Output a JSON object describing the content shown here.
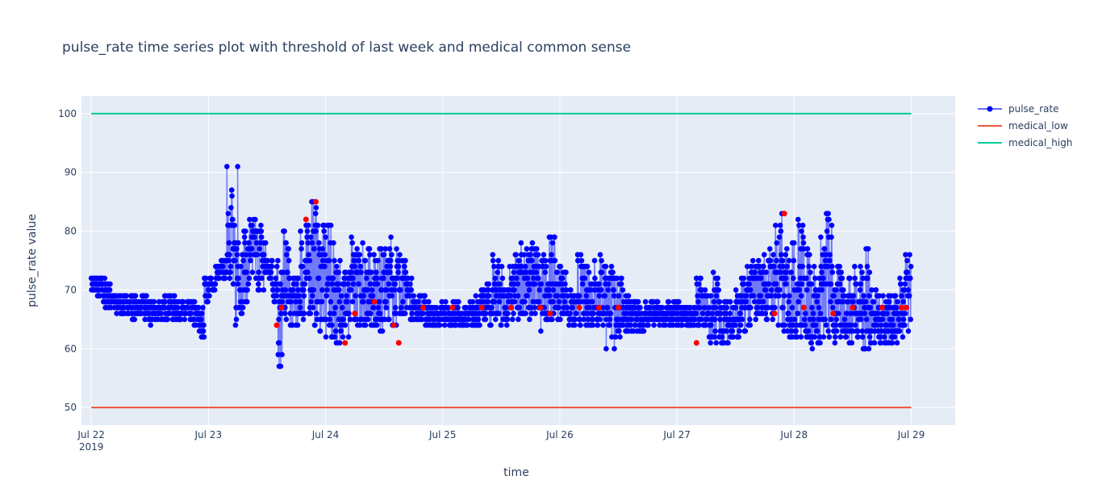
{
  "chart_data": {
    "type": "line",
    "title": "pulse_rate time series plot with threshold of last week and medical common sense",
    "xlabel": "time",
    "ylabel": "pulse_rate value",
    "x_range": [
      "2019-07-21T22:00",
      "2019-07-29T09:00"
    ],
    "ylim": [
      47,
      103
    ],
    "x_ticks": [
      {
        "x": "2019-07-22",
        "label": "Jul 22",
        "sublabel": "2019"
      },
      {
        "x": "2019-07-23",
        "label": "Jul 23",
        "sublabel": ""
      },
      {
        "x": "2019-07-24",
        "label": "Jul 24",
        "sublabel": ""
      },
      {
        "x": "2019-07-25",
        "label": "Jul 25",
        "sublabel": ""
      },
      {
        "x": "2019-07-26",
        "label": "Jul 26",
        "sublabel": ""
      },
      {
        "x": "2019-07-27",
        "label": "Jul 27",
        "sublabel": ""
      },
      {
        "x": "2019-07-28",
        "label": "Jul 28",
        "sublabel": ""
      },
      {
        "x": "2019-07-29",
        "label": "Jul 29",
        "sublabel": ""
      }
    ],
    "y_ticks": [
      50,
      60,
      70,
      80,
      90,
      100
    ],
    "grid": true,
    "legend_position": "top-right",
    "series": [
      {
        "name": "pulse_rate",
        "mode": "lines+markers",
        "line_color": "#636efa",
        "marker_color": "#0000ff",
        "x_start": "2019-07-22T00:00",
        "x_end": "2019-07-29T00:00",
        "envelope": [
          [
            70,
            72
          ],
          [
            69,
            72
          ],
          [
            67,
            72
          ],
          [
            67,
            71
          ],
          [
            66,
            69
          ],
          [
            66,
            69
          ],
          [
            66,
            69
          ],
          [
            65,
            69
          ],
          [
            66,
            68
          ],
          [
            65,
            69
          ],
          [
            64,
            68
          ],
          [
            65,
            68
          ],
          [
            65,
            68
          ],
          [
            65,
            69
          ],
          [
            65,
            69
          ],
          [
            65,
            68
          ],
          [
            65,
            68
          ],
          [
            65,
            68
          ],
          [
            64,
            68
          ],
          [
            62,
            67
          ],
          [
            68,
            72
          ],
          [
            70,
            72
          ],
          [
            72,
            74
          ],
          [
            72,
            75
          ],
          [
            72,
            91
          ],
          [
            64,
            82
          ],
          [
            66,
            78
          ],
          [
            68,
            80
          ],
          [
            73,
            82
          ],
          [
            70,
            82
          ],
          [
            70,
            81
          ],
          [
            72,
            75
          ],
          [
            68,
            75
          ],
          [
            57,
            75
          ],
          [
            65,
            80
          ],
          [
            64,
            72
          ],
          [
            64,
            72
          ],
          [
            65,
            80
          ],
          [
            66,
            81
          ],
          [
            64,
            85
          ],
          [
            63,
            81
          ],
          [
            62,
            81
          ],
          [
            62,
            81
          ],
          [
            61,
            75
          ],
          [
            62,
            75
          ],
          [
            62,
            73
          ],
          [
            65,
            79
          ],
          [
            64,
            77
          ],
          [
            64,
            78
          ],
          [
            64,
            77
          ],
          [
            64,
            76
          ],
          [
            63,
            77
          ],
          [
            65,
            77
          ],
          [
            64,
            79
          ],
          [
            66,
            77
          ],
          [
            66,
            75
          ],
          [
            65,
            72
          ],
          [
            65,
            69
          ],
          [
            65,
            69
          ],
          [
            64,
            69
          ],
          [
            64,
            67
          ],
          [
            64,
            67
          ],
          [
            64,
            68
          ],
          [
            64,
            67
          ],
          [
            64,
            68
          ],
          [
            64,
            66
          ],
          [
            64,
            67
          ],
          [
            64,
            68
          ],
          [
            64,
            69
          ],
          [
            65,
            70
          ],
          [
            64,
            71
          ],
          [
            65,
            76
          ],
          [
            64,
            75
          ],
          [
            64,
            70
          ],
          [
            65,
            74
          ],
          [
            65,
            76
          ],
          [
            66,
            78
          ],
          [
            65,
            77
          ],
          [
            66,
            78
          ],
          [
            63,
            76
          ],
          [
            65,
            76
          ],
          [
            65,
            79
          ],
          [
            65,
            75
          ],
          [
            66,
            74
          ],
          [
            64,
            70
          ],
          [
            64,
            69
          ],
          [
            64,
            76
          ],
          [
            64,
            74
          ],
          [
            64,
            73
          ],
          [
            64,
            75
          ],
          [
            64,
            76
          ],
          [
            64,
            74
          ],
          [
            60,
            74
          ],
          [
            62,
            72
          ],
          [
            63,
            70
          ],
          [
            63,
            69
          ],
          [
            63,
            68
          ],
          [
            63,
            67
          ],
          [
            64,
            68
          ],
          [
            64,
            68
          ],
          [
            64,
            68
          ],
          [
            64,
            67
          ],
          [
            64,
            68
          ],
          [
            64,
            68
          ],
          [
            64,
            67
          ],
          [
            64,
            67
          ],
          [
            64,
            67
          ],
          [
            64,
            72
          ],
          [
            64,
            70
          ],
          [
            61,
            69
          ],
          [
            61,
            73
          ],
          [
            61,
            68
          ],
          [
            61,
            68
          ],
          [
            62,
            68
          ],
          [
            62,
            70
          ],
          [
            63,
            72
          ],
          [
            64,
            74
          ],
          [
            65,
            75
          ],
          [
            66,
            75
          ],
          [
            65,
            76
          ],
          [
            65,
            77
          ],
          [
            64,
            81
          ],
          [
            63,
            76
          ],
          [
            62,
            77
          ],
          [
            62,
            78
          ],
          [
            62,
            82
          ],
          [
            62,
            77
          ],
          [
            60,
            76
          ],
          [
            61,
            72
          ],
          [
            62,
            79
          ],
          [
            62,
            83
          ],
          [
            61,
            74
          ],
          [
            62,
            74
          ],
          [
            62,
            70
          ],
          [
            61,
            72
          ],
          [
            62,
            74
          ],
          [
            60,
            74
          ],
          [
            60,
            77
          ],
          [
            61,
            70
          ],
          [
            61,
            69
          ],
          [
            61,
            69
          ],
          [
            61,
            69
          ],
          [
            61,
            69
          ],
          [
            62,
            72
          ],
          [
            63,
            76
          ]
        ],
        "spikes": [
          {
            "x": "2019-07-23T06:00",
            "y": 91
          },
          {
            "x": "2019-07-23T14:30",
            "y": 57
          },
          {
            "x": "2019-07-23T21:30",
            "y": 85
          },
          {
            "x": "2019-07-26T09:30",
            "y": 60
          },
          {
            "x": "2019-07-27T21:30",
            "y": 83
          },
          {
            "x": "2019-07-28T07:00",
            "y": 83
          },
          {
            "x": "2019-07-28T14:30",
            "y": 60
          }
        ]
      },
      {
        "name": "",
        "mode": "markers",
        "marker_color": "#ff0000",
        "points": [
          {
            "x": "2019-07-23T14:00",
            "y": 64
          },
          {
            "x": "2019-07-23T15:00",
            "y": 67
          },
          {
            "x": "2019-07-23T20:00",
            "y": 82
          },
          {
            "x": "2019-07-23T22:00",
            "y": 85
          },
          {
            "x": "2019-07-24T04:00",
            "y": 61
          },
          {
            "x": "2019-07-24T06:00",
            "y": 66
          },
          {
            "x": "2019-07-24T10:00",
            "y": 68
          },
          {
            "x": "2019-07-24T14:00",
            "y": 64
          },
          {
            "x": "2019-07-24T15:00",
            "y": 61
          },
          {
            "x": "2019-07-24T20:00",
            "y": 67
          },
          {
            "x": "2019-07-25T02:00",
            "y": 67
          },
          {
            "x": "2019-07-25T08:00",
            "y": 67
          },
          {
            "x": "2019-07-25T14:00",
            "y": 67
          },
          {
            "x": "2019-07-25T20:00",
            "y": 67
          },
          {
            "x": "2019-07-25T22:00",
            "y": 66
          },
          {
            "x": "2019-07-26T04:00",
            "y": 67
          },
          {
            "x": "2019-07-26T08:00",
            "y": 67
          },
          {
            "x": "2019-07-26T12:00",
            "y": 67
          },
          {
            "x": "2019-07-27T04:00",
            "y": 61
          },
          {
            "x": "2019-07-27T20:00",
            "y": 66
          },
          {
            "x": "2019-07-27T22:00",
            "y": 83
          },
          {
            "x": "2019-07-28T02:00",
            "y": 67
          },
          {
            "x": "2019-07-28T08:00",
            "y": 66
          },
          {
            "x": "2019-07-28T12:00",
            "y": 67
          },
          {
            "x": "2019-07-28T18:00",
            "y": 67
          },
          {
            "x": "2019-07-28T22:00",
            "y": 67
          },
          {
            "x": "2019-07-28T23:00",
            "y": 67
          }
        ]
      },
      {
        "name": "medical_low",
        "mode": "lines",
        "line_color": "#ef553b",
        "x": [
          "2019-07-22T00:00",
          "2019-07-29T00:00"
        ],
        "y": [
          50,
          50
        ]
      },
      {
        "name": "medical_high",
        "mode": "lines",
        "line_color": "#00cc96",
        "x": [
          "2019-07-22T00:00",
          "2019-07-29T00:00"
        ],
        "y": [
          100,
          100
        ]
      }
    ]
  }
}
